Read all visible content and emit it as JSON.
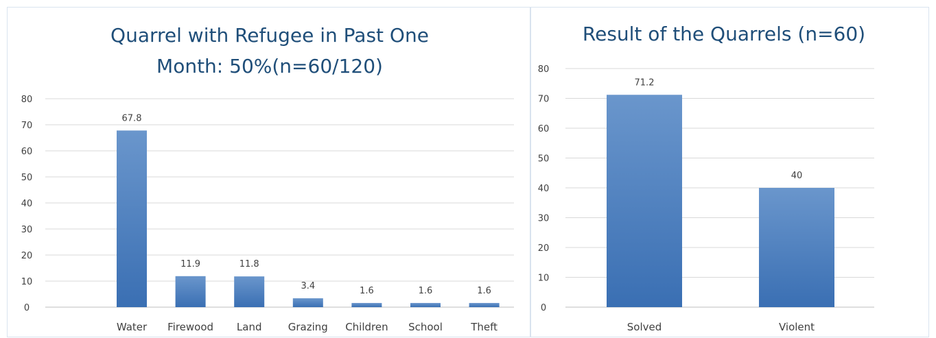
{
  "chart_data": [
    {
      "type": "bar",
      "title": "Quarrel with Refugee in Past One Month: 50%(n=60/120)",
      "title_lines": [
        "Quarrel with Refugee in Past One",
        "Month: 50%(n=60/120)"
      ],
      "categories": [
        "Water",
        "Firewood",
        "Land",
        "Grazing",
        "Children",
        "School",
        "Theft"
      ],
      "values": [
        67.8,
        11.9,
        11.8,
        3.4,
        1.6,
        1.6,
        1.6
      ],
      "data_labels": [
        "67.8",
        "11.9",
        "11.8",
        "3.4",
        "1.6",
        "1.6",
        "1.6"
      ],
      "xlabel": "",
      "ylabel": "",
      "ylim": [
        0,
        80
      ],
      "yticks": [
        "0",
        "10",
        "20",
        "30",
        "40",
        "50",
        "60",
        "70",
        "80"
      ],
      "grid": true,
      "legend": "none",
      "bar_color": "#4a7fc1"
    },
    {
      "type": "bar",
      "title": "Result of the Quarrels (n=60)",
      "title_lines": [
        "Result of the Quarrels (n=60)"
      ],
      "categories": [
        "Solved",
        "Violent"
      ],
      "values": [
        71.2,
        40
      ],
      "data_labels": [
        "71.2",
        "40"
      ],
      "xlabel": "",
      "ylabel": "",
      "ylim": [
        0,
        80
      ],
      "yticks": [
        "0",
        "10",
        "20",
        "30",
        "40",
        "50",
        "60",
        "70",
        "80"
      ],
      "grid": true,
      "legend": "none",
      "bar_color": "#4a7fc1"
    }
  ],
  "colors": {
    "title": "#1f4e79",
    "bar_top": "#6a96cc",
    "bar_bottom": "#3a6fb3",
    "grid": "#d9d9d9",
    "text": "#404040"
  }
}
